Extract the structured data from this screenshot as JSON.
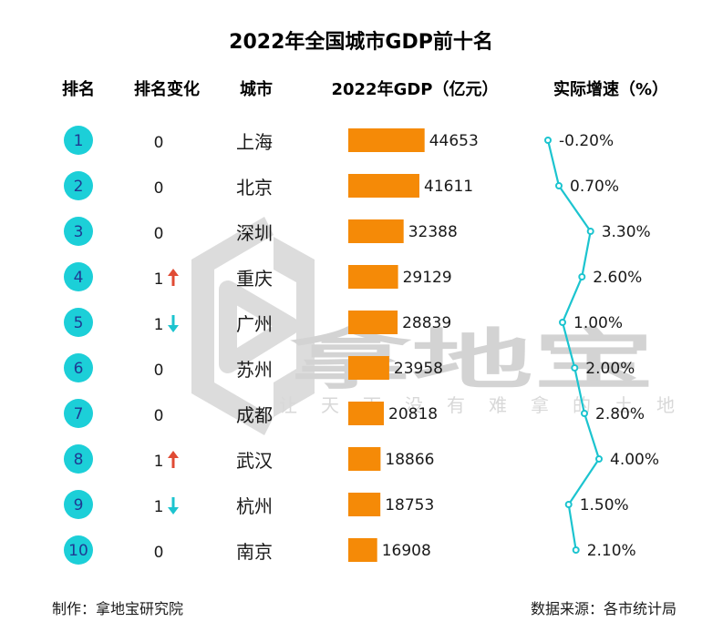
{
  "title": "2022年全国城市GDP前十名",
  "headers": {
    "rank": "排名",
    "rank_change": "排名变化",
    "city": "城市",
    "gdp": "2022年GDP（亿元）",
    "growth": "实际增速（%）"
  },
  "watermark": {
    "name": "拿地宝",
    "slogan": "让天下没有难拿的土地"
  },
  "footer": {
    "left": "制作：拿地宝研究院",
    "right": "数据来源：各市统计局"
  },
  "colors": {
    "bar": "#f58a07",
    "rank_circle": "#1ccfd8",
    "growth_line": "#1cc4cf",
    "arrow_up": "#e04b34",
    "arrow_down": "#1cc4cf"
  },
  "chart_data": {
    "type": "table",
    "title": "2022年全国城市GDP前十名",
    "rows": [
      {
        "rank": "1",
        "change": "0",
        "change_dir": "none",
        "city": "上海",
        "gdp": 44653,
        "gdp_label": "44653",
        "growth": -0.2,
        "growth_label": "-0.20%"
      },
      {
        "rank": "2",
        "change": "0",
        "change_dir": "none",
        "city": "北京",
        "gdp": 41611,
        "gdp_label": "41611",
        "growth": 0.7,
        "growth_label": "0.70%"
      },
      {
        "rank": "3",
        "change": "0",
        "change_dir": "none",
        "city": "深圳",
        "gdp": 32388,
        "gdp_label": "32388",
        "growth": 3.3,
        "growth_label": "3.30%"
      },
      {
        "rank": "4",
        "change": "1",
        "change_dir": "up",
        "city": "重庆",
        "gdp": 29129,
        "gdp_label": "29129",
        "growth": 2.6,
        "growth_label": "2.60%"
      },
      {
        "rank": "5",
        "change": "1",
        "change_dir": "down",
        "city": "广州",
        "gdp": 28839,
        "gdp_label": "28839",
        "growth": 1.0,
        "growth_label": "1.00%"
      },
      {
        "rank": "6",
        "change": "0",
        "change_dir": "none",
        "city": "苏州",
        "gdp": 23958,
        "gdp_label": "23958",
        "growth": 2.0,
        "growth_label": "2.00%"
      },
      {
        "rank": "7",
        "change": "0",
        "change_dir": "none",
        "city": "成都",
        "gdp": 20818,
        "gdp_label": "20818",
        "growth": 2.8,
        "growth_label": "2.80%"
      },
      {
        "rank": "8",
        "change": "1",
        "change_dir": "up",
        "city": "武汉",
        "gdp": 18866,
        "gdp_label": "18866",
        "growth": 4.0,
        "growth_label": "4.00%"
      },
      {
        "rank": "9",
        "change": "1",
        "change_dir": "down",
        "city": "杭州",
        "gdp": 18753,
        "gdp_label": "18753",
        "growth": 1.5,
        "growth_label": "1.50%"
      },
      {
        "rank": "10",
        "change": "0",
        "change_dir": "none",
        "city": "南京",
        "gdp": 16908,
        "gdp_label": "16908",
        "growth": 2.1,
        "growth_label": "2.10%"
      }
    ],
    "gdp_range": [
      0,
      80000
    ],
    "growth_range": [
      -0.2,
      4.0
    ]
  }
}
